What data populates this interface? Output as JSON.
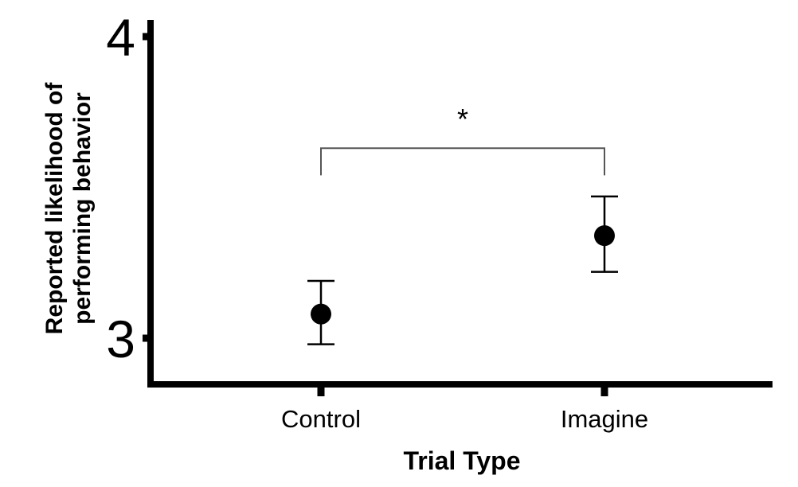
{
  "chart_data": {
    "type": "scatter",
    "title": "",
    "xlabel": "Trial Type",
    "ylabel_lines": [
      "Reported likelihood of",
      "performing behavior"
    ],
    "categories": [
      "Control",
      "Imagine"
    ],
    "series": [
      {
        "values": [
          3.08,
          3.34
        ],
        "error_low": [
          2.98,
          3.22
        ],
        "error_high": [
          3.19,
          3.47
        ]
      }
    ],
    "ylim": [
      2.85,
      4.0
    ],
    "yticks": [
      "3",
      "4"
    ],
    "grid": false,
    "legend": "none",
    "annotation": {
      "text": "*",
      "between": [
        "Control",
        "Imagine"
      ],
      "bracket_y": 3.63,
      "bracket_drop_y": 3.54
    },
    "colors": {
      "marker": "#000000",
      "axis": "#000000"
    }
  }
}
